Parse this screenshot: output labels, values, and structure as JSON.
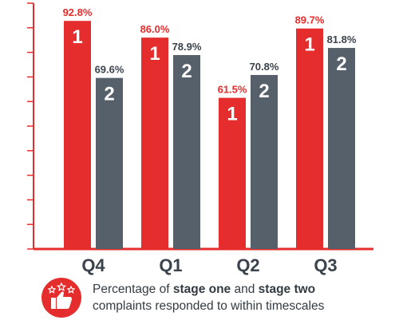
{
  "chart_data": {
    "type": "bar",
    "categories": [
      "Q4",
      "Q1",
      "Q2",
      "Q3"
    ],
    "series": [
      {
        "name": "1",
        "values": [
          92.8,
          86.0,
          61.5,
          89.7
        ],
        "color": "#e52d2d"
      },
      {
        "name": "2",
        "values": [
          69.6,
          78.9,
          70.8,
          81.8
        ],
        "color": "#55606a"
      }
    ],
    "value_labels": [
      [
        "92.8%",
        "86.0%",
        "61.5%",
        "89.7%"
      ],
      [
        "69.6%",
        "78.9%",
        "70.8%",
        "81.8%"
      ]
    ],
    "ylim": [
      0,
      100
    ],
    "tick_count": 11,
    "axis_color": "#e52d2d",
    "label_colors": [
      "#e52d2d",
      "#3a434b"
    ]
  },
  "caption": {
    "prefix": "Percentage of ",
    "bold1": "stage one",
    "mid": " and ",
    "bold2": "stage two",
    "line2": "complaints responded to within timescales"
  },
  "icons": {
    "caption_icon": "thumbs-up-stars-icon"
  }
}
